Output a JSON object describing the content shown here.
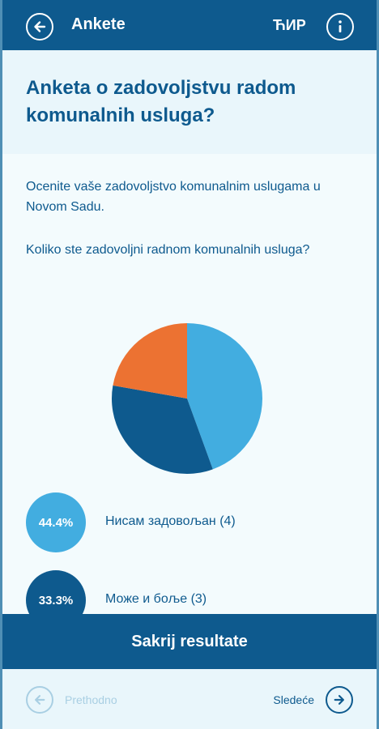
{
  "app_bar": {
    "back_icon": "arrow-left-circle-icon",
    "title": "Ankete",
    "script_toggle": "ЋИР",
    "info_icon": "info-circle-icon"
  },
  "survey": {
    "title": "Anketa o zadovoljstvu radom komunalnih usluga?",
    "description": "Ocenite vaše zadovoljstvo komunalnim uslugama u Novom Sadu.",
    "question": "Koliko ste zadovoljni radnom komunalnih usluga?"
  },
  "results": {
    "items": [
      {
        "percent": "44.4%",
        "label": "Нисам задовољан (4)",
        "color": "#42ade0"
      },
      {
        "percent": "33.3%",
        "label": "Може и боље (3)",
        "color": "#0e5a8e"
      }
    ]
  },
  "chart_data": {
    "type": "pie",
    "slices": [
      {
        "value": 4,
        "color": "#42ade0"
      },
      {
        "value": 3,
        "color": "#0e5a8e"
      },
      {
        "value": 2,
        "color": "#ec7232"
      }
    ]
  },
  "actions": {
    "hide_results": "Sakrij resultate"
  },
  "navigation": {
    "prev_label": "Prethodno",
    "prev_icon": "arrow-left-circle-icon",
    "next_label": "Sledeće",
    "next_icon": "arrow-right-circle-icon"
  },
  "colors": {
    "primary": "#0e5a8e",
    "light_blue": "#42ade0",
    "orange": "#ec7232",
    "disabled": "#a9cfe3"
  }
}
